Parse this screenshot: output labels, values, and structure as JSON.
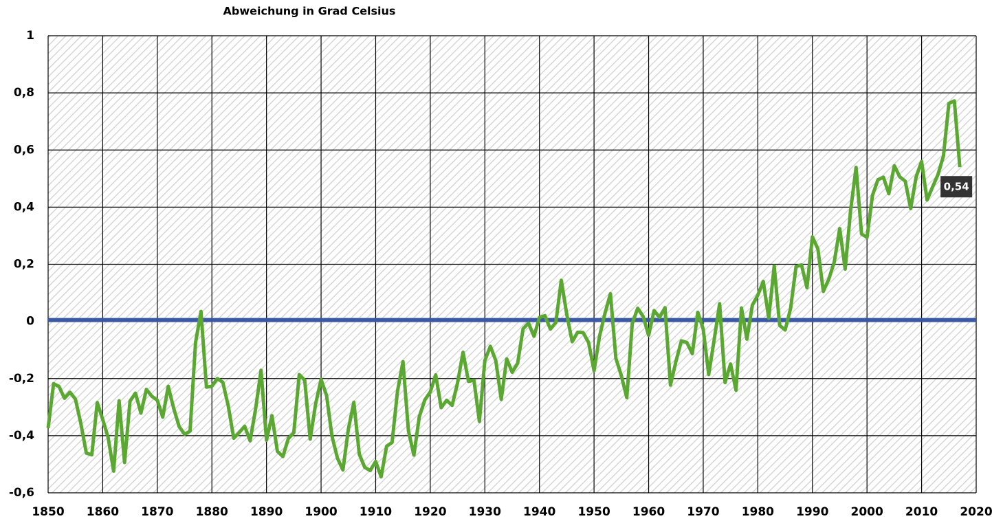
{
  "chart_data": {
    "type": "line",
    "title": "Abweichung in Grad Celsius",
    "color": "#5aa832",
    "reference_line": {
      "value": 0,
      "color": "#3a5aa8"
    },
    "last_label": "0,54",
    "xlim": [
      1850,
      2020
    ],
    "xticks": [
      1850,
      1860,
      1870,
      1880,
      1890,
      1900,
      1910,
      1920,
      1930,
      1940,
      1950,
      1960,
      1970,
      1980,
      1990,
      2000,
      2010,
      2020
    ],
    "ylim": [
      -0.6,
      1
    ],
    "yticks": [
      {
        "value": -0.6,
        "label": "-0,6"
      },
      {
        "value": -0.4,
        "label": "-0,4"
      },
      {
        "value": -0.2,
        "label": "-0,2"
      },
      0,
      {
        "value": 0.2,
        "label": "0,2"
      },
      {
        "value": 0.4,
        "label": "0,4"
      },
      {
        "value": 0.6,
        "label": "0,6"
      },
      {
        "value": 0.8,
        "label": "0,8"
      },
      1
    ],
    "grid": true,
    "x": [
      1850,
      1851,
      1852,
      1853,
      1854,
      1855,
      1856,
      1857,
      1858,
      1859,
      1860,
      1861,
      1862,
      1863,
      1864,
      1865,
      1866,
      1867,
      1868,
      1869,
      1870,
      1871,
      1872,
      1873,
      1874,
      1875,
      1876,
      1877,
      1878,
      1879,
      1880,
      1881,
      1882,
      1883,
      1884,
      1885,
      1886,
      1887,
      1888,
      1889,
      1890,
      1891,
      1892,
      1893,
      1894,
      1895,
      1896,
      1897,
      1898,
      1899,
      1900,
      1901,
      1902,
      1903,
      1904,
      1905,
      1906,
      1907,
      1908,
      1909,
      1910,
      1911,
      1912,
      1913,
      1914,
      1915,
      1916,
      1917,
      1918,
      1919,
      1920,
      1921,
      1922,
      1923,
      1924,
      1925,
      1926,
      1927,
      1928,
      1929,
      1930,
      1931,
      1932,
      1933,
      1934,
      1935,
      1936,
      1937,
      1938,
      1939,
      1940,
      1941,
      1942,
      1943,
      1944,
      1945,
      1946,
      1947,
      1948,
      1949,
      1950,
      1951,
      1952,
      1953,
      1954,
      1955,
      1956,
      1957,
      1958,
      1959,
      1960,
      1961,
      1962,
      1963,
      1964,
      1965,
      1966,
      1967,
      1968,
      1969,
      1970,
      1971,
      1972,
      1973,
      1974,
      1975,
      1976,
      1977,
      1978,
      1979,
      1980,
      1981,
      1982,
      1983,
      1984,
      1985,
      1986,
      1987,
      1988,
      1989,
      1990,
      1991,
      1992,
      1993,
      1994,
      1995,
      1996,
      1997,
      1998,
      1999,
      2000,
      2001,
      2002,
      2003,
      2004,
      2005,
      2006,
      2007,
      2008,
      2009,
      2010,
      2011,
      2012,
      2013,
      2014,
      2015,
      2016,
      2017
    ],
    "values": [
      -0.373,
      -0.218,
      -0.228,
      -0.269,
      -0.248,
      -0.272,
      -0.358,
      -0.461,
      -0.467,
      -0.284,
      -0.343,
      -0.407,
      -0.524,
      -0.278,
      -0.494,
      -0.279,
      -0.251,
      -0.321,
      -0.238,
      -0.262,
      -0.276,
      -0.335,
      -0.227,
      -0.304,
      -0.368,
      -0.395,
      -0.384,
      -0.075,
      0.035,
      -0.23,
      -0.227,
      -0.2,
      -0.213,
      -0.296,
      -0.409,
      -0.389,
      -0.367,
      -0.418,
      -0.307,
      -0.171,
      -0.416,
      -0.33,
      -0.455,
      -0.473,
      -0.41,
      -0.39,
      -0.186,
      -0.206,
      -0.412,
      -0.289,
      -0.203,
      -0.259,
      -0.402,
      -0.479,
      -0.52,
      -0.377,
      -0.283,
      -0.465,
      -0.511,
      -0.522,
      -0.49,
      -0.544,
      -0.437,
      -0.424,
      -0.244,
      -0.141,
      -0.383,
      -0.468,
      -0.333,
      -0.275,
      -0.247,
      -0.187,
      -0.302,
      -0.276,
      -0.294,
      -0.215,
      -0.108,
      -0.21,
      -0.206,
      -0.35,
      -0.137,
      -0.087,
      -0.137,
      -0.273,
      -0.131,
      -0.178,
      -0.147,
      -0.026,
      -0.006,
      -0.052,
      0.014,
      0.02,
      -0.027,
      -0.004,
      0.144,
      0.025,
      -0.071,
      -0.038,
      -0.039,
      -0.074,
      -0.173,
      -0.052,
      0.028,
      0.097,
      -0.129,
      -0.19,
      -0.267,
      -0.007,
      0.046,
      0.017,
      -0.049,
      0.038,
      0.014,
      0.048,
      -0.223,
      -0.14,
      -0.068,
      -0.074,
      -0.113,
      0.032,
      -0.027,
      -0.186,
      -0.065,
      0.062,
      -0.214,
      -0.149,
      -0.241,
      0.047,
      -0.062,
      0.057,
      0.092,
      0.14,
      0.011,
      0.194,
      -0.014,
      -0.03,
      0.045,
      0.192,
      0.198,
      0.118,
      0.296,
      0.254,
      0.105,
      0.148,
      0.208,
      0.325,
      0.183,
      0.39,
      0.539,
      0.306,
      0.294,
      0.441,
      0.496,
      0.505,
      0.447,
      0.545,
      0.506,
      0.491,
      0.395,
      0.506,
      0.56,
      0.425,
      0.47,
      0.514,
      0.579,
      0.763,
      0.772,
      0.54
    ]
  }
}
